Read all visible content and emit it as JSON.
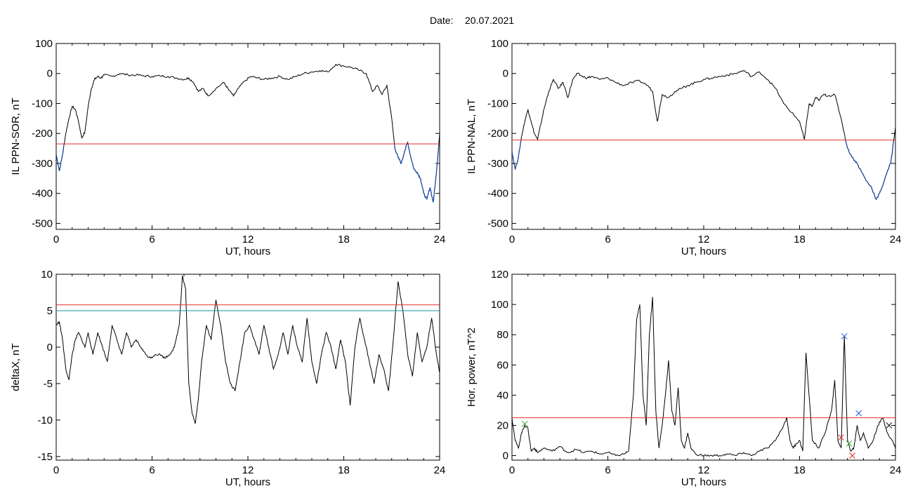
{
  "title_prefix": "Date:",
  "date": "20.07.2021",
  "colors": {
    "trace": "#000000",
    "threshold_red": "#e03030",
    "threshold_teal": "#1a9c9c",
    "below_threshold": "#1f5fd0",
    "marker_green": "#22aa22",
    "marker_blue": "#2255dd",
    "marker_red": "#dd2222"
  },
  "chart_data": [
    {
      "type": "line",
      "id": "sor",
      "ylabel": "IL PPN-SOR, nT",
      "xlabel": "UT, hours",
      "xlim": [
        0,
        24
      ],
      "ylim": [
        -520,
        100
      ],
      "xticks": [
        "0",
        "6",
        "12",
        "18",
        "24"
      ],
      "yticks": [
        "100",
        "0",
        "-100",
        "-200",
        "-300",
        "-400",
        "-500"
      ],
      "threshold": -235,
      "below_color": "blue",
      "series": [
        {
          "x": [
            0,
            0.2,
            0.4,
            0.6,
            0.8,
            1.0,
            1.2,
            1.4,
            1.6,
            1.8,
            2.0,
            2.2,
            2.4,
            2.6,
            2.8,
            3.0,
            3.5,
            4.0,
            4.5,
            5.0,
            5.5,
            6.0,
            6.5,
            7.0,
            7.5,
            8.0,
            8.3,
            8.6,
            8.9,
            9.2,
            9.5,
            10.0,
            10.5,
            10.8,
            11.1,
            11.4,
            11.8,
            12.2,
            12.6,
            13.0,
            13.5,
            14.0,
            14.5,
            15.0,
            15.5,
            16.0,
            16.5,
            17.0,
            17.5,
            18.0,
            18.5,
            19.0,
            19.4,
            19.8,
            20.1,
            20.4,
            20.7,
            21.0,
            21.2,
            21.4,
            21.6,
            21.8,
            22.0,
            22.2,
            22.4,
            22.6,
            22.8,
            23.0,
            23.2,
            23.4,
            23.6,
            23.8,
            24.0
          ],
          "values": [
            -270,
            -325,
            -270,
            -200,
            -150,
            -110,
            -120,
            -160,
            -215,
            -195,
            -110,
            -50,
            -20,
            -10,
            -15,
            -5,
            -10,
            0,
            -5,
            -5,
            -8,
            -10,
            -8,
            -10,
            -15,
            -20,
            -15,
            -30,
            -60,
            -50,
            -75,
            -50,
            -30,
            -55,
            -75,
            -50,
            -25,
            -10,
            -15,
            -20,
            -15,
            -10,
            -20,
            -10,
            0,
            5,
            10,
            5,
            30,
            25,
            20,
            10,
            0,
            -60,
            -40,
            -70,
            -40,
            -150,
            -250,
            -280,
            -300,
            -260,
            -230,
            -280,
            -320,
            -330,
            -350,
            -400,
            -420,
            -380,
            -430,
            -330,
            -200
          ]
        }
      ]
    },
    {
      "type": "line",
      "id": "nal",
      "ylabel": "IL PPN-NAL, nT",
      "xlabel": "UT, hours",
      "xlim": [
        0,
        24
      ],
      "ylim": [
        -520,
        100
      ],
      "xticks": [
        "0",
        "6",
        "12",
        "18",
        "24"
      ],
      "yticks": [
        "100",
        "0",
        "-100",
        "-200",
        "-300",
        "-400",
        "-500"
      ],
      "threshold": -222,
      "below_color": "blue",
      "series": [
        {
          "x": [
            0,
            0.2,
            0.4,
            0.6,
            0.8,
            1.0,
            1.2,
            1.4,
            1.6,
            1.8,
            2.0,
            2.3,
            2.6,
            2.9,
            3.2,
            3.5,
            3.8,
            4.1,
            4.4,
            4.7,
            5.0,
            5.5,
            6.0,
            6.5,
            7.0,
            7.5,
            8.0,
            8.5,
            8.8,
            9.1,
            9.4,
            9.8,
            10.2,
            10.6,
            11.0,
            11.5,
            12.0,
            12.5,
            13.0,
            13.5,
            14.0,
            14.5,
            15.0,
            15.5,
            16.0,
            16.5,
            17.0,
            17.5,
            18.0,
            18.3,
            18.6,
            18.8,
            19.0,
            19.2,
            19.5,
            19.8,
            20.2,
            20.6,
            21.0,
            21.3,
            21.6,
            21.9,
            22.2,
            22.5,
            22.8,
            23.1,
            23.4,
            23.7,
            24.0
          ],
          "values": [
            -260,
            -320,
            -280,
            -210,
            -160,
            -120,
            -160,
            -200,
            -220,
            -170,
            -120,
            -60,
            -20,
            -50,
            -30,
            -80,
            -20,
            0,
            -10,
            -15,
            -10,
            -20,
            -15,
            -30,
            -40,
            -30,
            -25,
            -40,
            -60,
            -160,
            -70,
            -80,
            -60,
            -50,
            -40,
            -30,
            -20,
            -15,
            -10,
            -5,
            0,
            10,
            -10,
            5,
            -20,
            -50,
            -100,
            -130,
            -160,
            -220,
            -100,
            -110,
            -80,
            -90,
            -70,
            -75,
            -70,
            -150,
            -250,
            -280,
            -300,
            -330,
            -360,
            -380,
            -420,
            -390,
            -340,
            -300,
            -180
          ]
        }
      ]
    },
    {
      "type": "line",
      "id": "deltax",
      "ylabel": "deltaX, nT",
      "xlabel": "UT, hours",
      "xlim": [
        0,
        24
      ],
      "ylim": [
        -15.5,
        10
      ],
      "xticks": [
        "0",
        "6",
        "12",
        "18",
        "24"
      ],
      "yticks": [
        "10",
        "5",
        "0",
        "-5",
        "-10",
        "-15"
      ],
      "thresholds": [
        {
          "value": 5.8,
          "color": "red"
        },
        {
          "value": 5.0,
          "color": "teal"
        }
      ],
      "series": [
        {
          "x": [
            0,
            0.2,
            0.4,
            0.6,
            0.8,
            1.0,
            1.2,
            1.4,
            1.6,
            1.8,
            2.0,
            2.3,
            2.6,
            2.9,
            3.2,
            3.5,
            3.8,
            4.1,
            4.4,
            4.7,
            5.0,
            5.3,
            5.6,
            5.9,
            6.2,
            6.5,
            6.8,
            7.1,
            7.4,
            7.7,
            7.9,
            8.1,
            8.3,
            8.5,
            8.7,
            8.9,
            9.1,
            9.4,
            9.7,
            10.0,
            10.3,
            10.6,
            10.9,
            11.2,
            11.5,
            11.8,
            12.1,
            12.4,
            12.7,
            13.0,
            13.3,
            13.6,
            13.9,
            14.2,
            14.5,
            14.8,
            15.1,
            15.4,
            15.7,
            16.0,
            16.3,
            16.6,
            16.9,
            17.2,
            17.5,
            17.8,
            18.1,
            18.4,
            18.7,
            19.0,
            19.3,
            19.6,
            19.9,
            20.2,
            20.5,
            20.8,
            21.1,
            21.4,
            21.7,
            22.0,
            22.3,
            22.6,
            22.9,
            23.2,
            23.5,
            23.8,
            24.0
          ],
          "values": [
            3,
            3.5,
            1,
            -3,
            -4.5,
            -1,
            1,
            2,
            1,
            0,
            2,
            -1,
            2,
            0,
            -2,
            3,
            1,
            -1,
            2,
            0,
            1,
            0,
            -1,
            -1.5,
            -1,
            -1,
            -1.5,
            -1,
            0,
            3,
            9.8,
            8,
            -5,
            -9,
            -10.5,
            -7,
            -2,
            3,
            1,
            6.5,
            3,
            -2,
            -5,
            -6,
            -2,
            2,
            3,
            1,
            -1,
            3,
            0,
            -3,
            -1,
            2,
            -1,
            3,
            0,
            -2,
            4,
            -2,
            -5,
            -1,
            2,
            0,
            -3,
            1,
            -2,
            -8,
            0,
            4,
            1,
            -2,
            -5,
            -1,
            -3,
            -6,
            1,
            9,
            5,
            -1,
            -4,
            2,
            -2,
            0,
            4,
            -1,
            -3.5
          ]
        }
      ]
    },
    {
      "type": "line",
      "id": "horpower",
      "ylabel": "Hor. power, nT^2",
      "xlabel": "UT, hours",
      "xlim": [
        0,
        24
      ],
      "ylim": [
        -3,
        120
      ],
      "xticks": [
        "0",
        "6",
        "12",
        "18",
        "24"
      ],
      "yticks": [
        "120",
        "100",
        "80",
        "60",
        "40",
        "20",
        "0"
      ],
      "threshold": 25,
      "markers": [
        {
          "x": 0.8,
          "y": 21,
          "color": "green"
        },
        {
          "x": 20.6,
          "y": 12,
          "color": "red"
        },
        {
          "x": 20.8,
          "y": 79,
          "color": "blue"
        },
        {
          "x": 21.1,
          "y": 8,
          "color": "green"
        },
        {
          "x": 21.3,
          "y": 0,
          "color": "red"
        },
        {
          "x": 21.7,
          "y": 28,
          "color": "blue"
        },
        {
          "x": 23.6,
          "y": 20,
          "color": "black"
        }
      ],
      "series": [
        {
          "x": [
            0,
            0.2,
            0.4,
            0.6,
            0.8,
            1.0,
            1.2,
            1.4,
            1.6,
            2.0,
            2.5,
            3.0,
            3.5,
            4.0,
            4.5,
            5.0,
            5.5,
            6.0,
            6.5,
            7.0,
            7.3,
            7.6,
            7.8,
            8.0,
            8.2,
            8.4,
            8.6,
            8.8,
            9.0,
            9.2,
            9.4,
            9.6,
            9.8,
            10.0,
            10.2,
            10.4,
            10.6,
            10.8,
            11.0,
            11.2,
            11.5,
            12.0,
            12.5,
            13.0,
            13.5,
            14.0,
            14.5,
            15.0,
            15.5,
            16.0,
            16.5,
            17.0,
            17.2,
            17.4,
            17.6,
            17.8,
            18.0,
            18.2,
            18.4,
            18.8,
            19.2,
            19.6,
            20.0,
            20.2,
            20.4,
            20.6,
            20.8,
            21.0,
            21.2,
            21.4,
            21.6,
            21.8,
            22.0,
            22.3,
            22.6,
            22.9,
            23.2,
            23.5,
            23.8,
            24.0
          ],
          "values": [
            25,
            10,
            5,
            15,
            20,
            18,
            3,
            5,
            2,
            5,
            3,
            6,
            2,
            4,
            2,
            3,
            1,
            2,
            0,
            1,
            3,
            40,
            90,
            100,
            40,
            20,
            80,
            105,
            30,
            5,
            20,
            40,
            63,
            30,
            20,
            45,
            10,
            5,
            15,
            5,
            1,
            0,
            0,
            0,
            1,
            0,
            2,
            0,
            3,
            5,
            10,
            20,
            25,
            10,
            5,
            8,
            10,
            3,
            68,
            10,
            5,
            15,
            30,
            50,
            10,
            5,
            79,
            10,
            3,
            5,
            20,
            10,
            15,
            5,
            10,
            20,
            25,
            15,
            10,
            5
          ]
        }
      ]
    }
  ]
}
